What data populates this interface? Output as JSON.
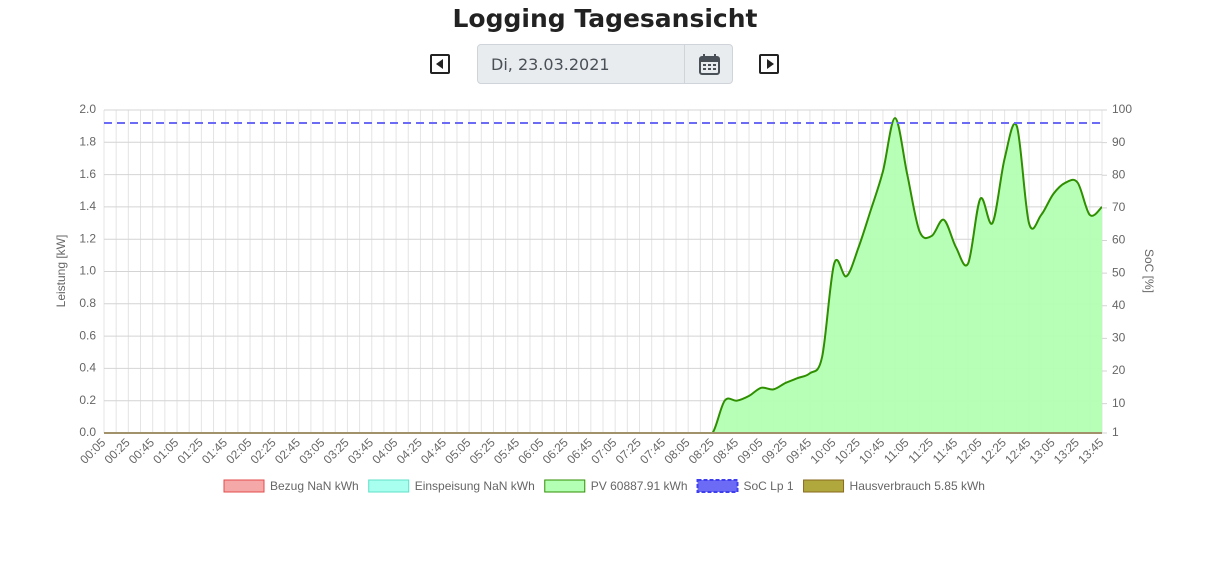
{
  "header": {
    "title": "Logging Tagesansicht",
    "date": "Di, 23.03.2021"
  },
  "chart_data": {
    "type": "line",
    "ylabel": "Leistung [kW]",
    "y2label": "SoC [%]",
    "categories": [
      "00:05",
      null,
      "00:25",
      null,
      "00:45",
      null,
      "01:05",
      null,
      "01:25",
      null,
      "01:45",
      null,
      "02:05",
      null,
      "02:25",
      null,
      "02:45",
      null,
      "03:05",
      null,
      "03:25",
      null,
      "03:45",
      null,
      "04:05",
      null,
      "04:25",
      null,
      "04:45",
      null,
      "05:05",
      null,
      "05:25",
      null,
      "05:45",
      null,
      "06:05",
      null,
      "06:25",
      null,
      "06:45",
      null,
      "07:05",
      null,
      "07:25",
      null,
      "07:45",
      null,
      "08:05",
      null,
      "08:25",
      null,
      "08:45",
      null,
      "09:05",
      null,
      "09:25",
      null,
      "09:45",
      null,
      "10:05",
      null,
      "10:25",
      null,
      "10:45",
      null,
      "11:05",
      null,
      "11:25",
      null,
      "11:45",
      null,
      "12:05",
      null,
      "12:25",
      null,
      "12:45",
      null,
      "13:05",
      null,
      "13:25",
      null,
      "13:45"
    ],
    "ylim": [
      0,
      2
    ],
    "yticks": [
      {
        "value": 0,
        "label": "0.0"
      },
      0.2,
      0.4,
      0.6,
      0.8,
      {
        "value": 1,
        "label": "1.0"
      },
      1.2,
      1.4,
      1.6,
      1.8,
      {
        "value": 2,
        "label": "2.0"
      }
    ],
    "y2lim": [
      1,
      100
    ],
    "y2ticks": [
      1,
      10,
      20,
      30,
      40,
      50,
      60,
      70,
      80,
      90,
      100
    ],
    "grid": true,
    "series": [
      {
        "name": "Bezug NaN kWh",
        "color": "#f5a8a8",
        "border": "#e34b4b"
      },
      {
        "name": "Einspeisung NaN kWh",
        "color": "#a8fff0",
        "border": "#5fe0c8"
      },
      {
        "name": "PV 60887.91 kWh",
        "color": "#b3ffb3",
        "border": "#2f8f00",
        "fill": true,
        "values": [
          0,
          0,
          0,
          0,
          0,
          0,
          0,
          0,
          0,
          0,
          0,
          0,
          0,
          0,
          0,
          0,
          0,
          0,
          0,
          0,
          0,
          0,
          0,
          0,
          0,
          0,
          0,
          0,
          0,
          0,
          0,
          0,
          0,
          0,
          0,
          0,
          0,
          0,
          0,
          0,
          0,
          0,
          0,
          0,
          0,
          0,
          0,
          0,
          0,
          0,
          0,
          0.2,
          0.2,
          0.23,
          0.28,
          0.27,
          0.31,
          0.34,
          0.37,
          0.47,
          1.05,
          0.97,
          1.15,
          1.38,
          1.62,
          1.95,
          1.6,
          1.25,
          1.22,
          1.32,
          1.15,
          1.05,
          1.45,
          1.3,
          1.7,
          1.9,
          1.3,
          1.35,
          1.48,
          1.55,
          1.55,
          1.35,
          1.4
        ]
      },
      {
        "name": "SoC Lp 1",
        "color": "#6b6bf5",
        "border": "#3f3ff0",
        "dashed": true,
        "axis": "y2",
        "values": [
          96,
          96,
          96,
          96,
          96,
          96,
          96,
          96,
          96,
          96,
          96,
          96,
          96,
          96,
          96,
          96,
          96,
          96,
          96,
          96,
          96,
          96,
          96,
          96,
          96,
          96,
          96,
          96,
          96,
          96,
          96,
          96,
          96,
          96,
          96,
          96,
          96,
          96,
          96,
          96,
          96,
          96,
          96,
          96,
          96,
          96,
          96,
          96,
          96,
          96,
          96,
          96,
          96,
          96,
          96,
          96,
          96,
          96,
          96,
          96,
          96,
          96,
          96,
          96,
          96,
          96,
          96,
          96,
          96,
          96,
          96,
          96,
          96,
          96,
          96,
          96,
          96,
          96,
          96,
          96,
          96,
          96,
          96
        ]
      },
      {
        "name": "Hausverbrauch 5.85 kWh",
        "color": "#b0a83c",
        "border": "#8a6a1e",
        "values": [
          0,
          0,
          0,
          0,
          0,
          0,
          0,
          0,
          0,
          0,
          0,
          0,
          0,
          0,
          0,
          0,
          0,
          0,
          0,
          0,
          0,
          0,
          0,
          0,
          0,
          0,
          0,
          0,
          0,
          0,
          0,
          0,
          0,
          0,
          0,
          0,
          0,
          0,
          0,
          0,
          0,
          0,
          0,
          0,
          0,
          0,
          0,
          0,
          0,
          0,
          0,
          0,
          0,
          0,
          0,
          0,
          0,
          0,
          0,
          0,
          0,
          0,
          0,
          0,
          0,
          0,
          0,
          0,
          0,
          0,
          0,
          0,
          0,
          0,
          0,
          0,
          0,
          0,
          0,
          0,
          0,
          0,
          0
        ]
      }
    ]
  }
}
